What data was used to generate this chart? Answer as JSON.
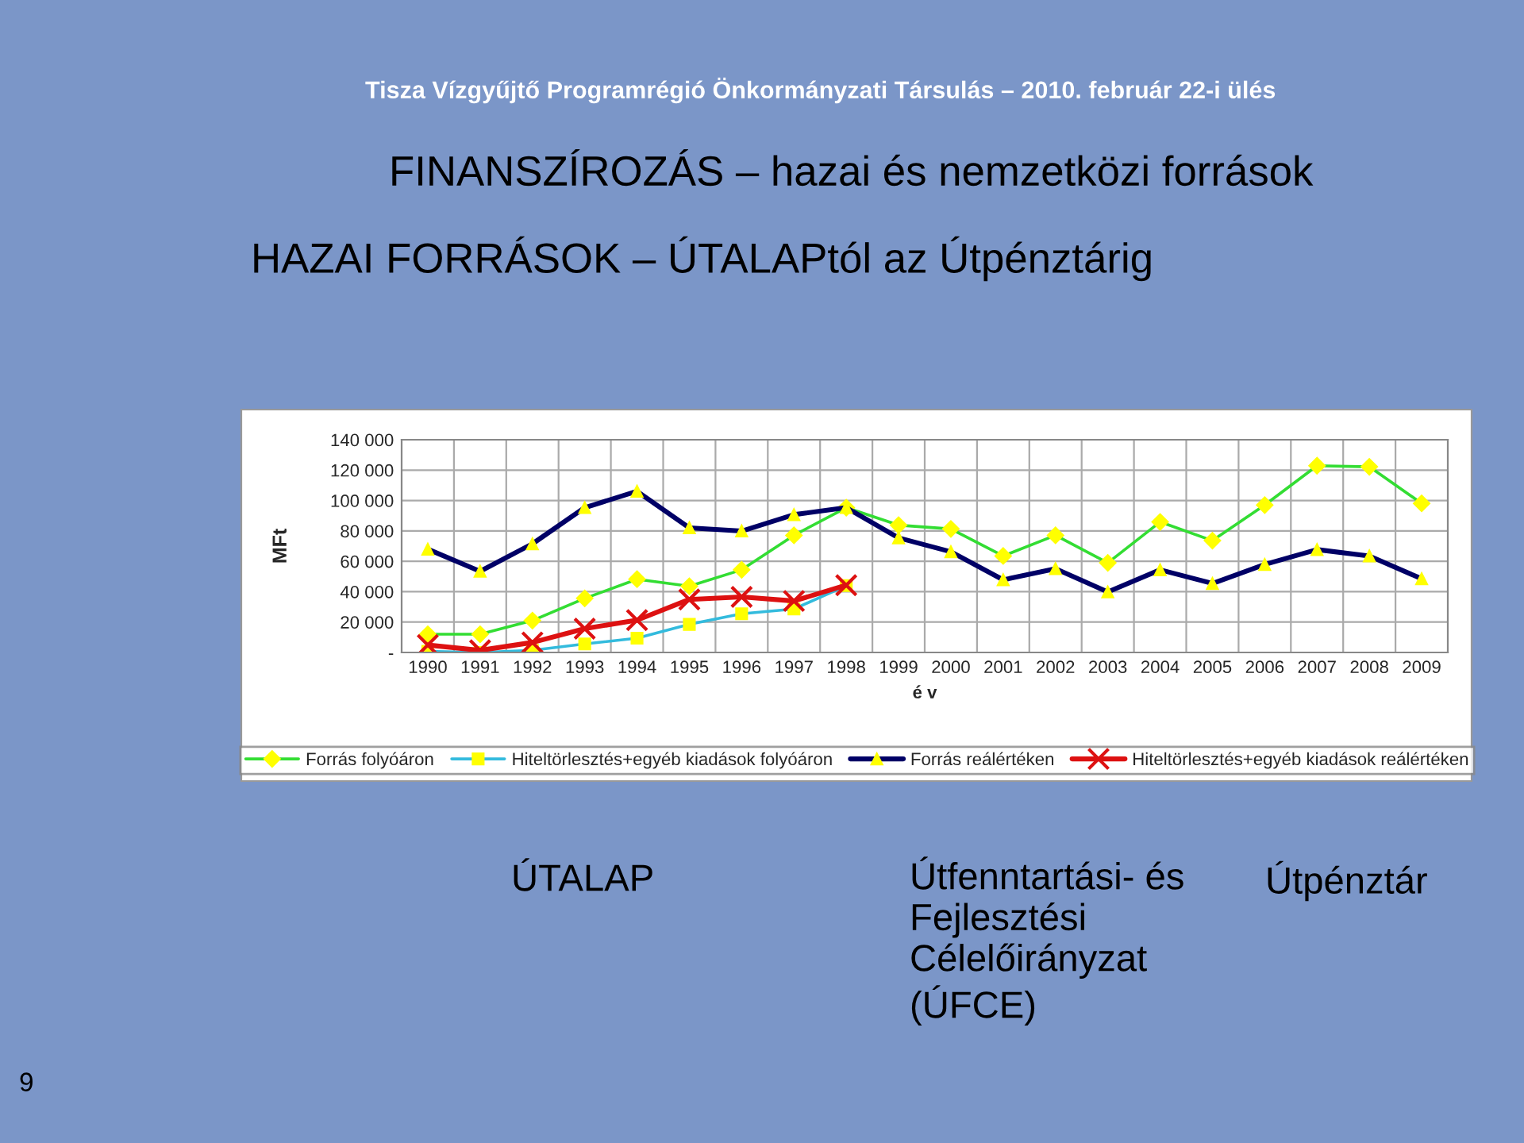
{
  "chart_data": {
    "type": "line",
    "title": "FINANSZÍROZÁS – hazai és nemzetközi források",
    "subtitle": "HAZAI FORRÁSOK – ÚTALAPtól az Útpénztárig",
    "xlabel": "é v",
    "ylabel": "MFt",
    "categories": [
      "1990",
      "1991",
      "1992",
      "1993",
      "1994",
      "1995",
      "1996",
      "1997",
      "1998",
      "1999",
      "2000",
      "2001",
      "2002",
      "2003",
      "2004",
      "2005",
      "2006",
      "2007",
      "2008",
      "2009"
    ],
    "series": [
      {
        "name": "Forrás folyóáron",
        "color": "#33dd33",
        "marker": "diamond",
        "values": [
          12000,
          12000,
          21000,
          35600,
          48200,
          43600,
          54400,
          77100,
          95300,
          83800,
          81300,
          63500,
          77100,
          59000,
          85900,
          73600,
          97000,
          122900,
          122200,
          98100
        ]
      },
      {
        "name": "Hiteltörlesztés+egyéb kiadások folyóáron",
        "color": "#33bbdd",
        "marker": "square",
        "values": [
          700,
          0,
          1400,
          5600,
          9400,
          18500,
          25500,
          28600,
          44000,
          null,
          null,
          null,
          null,
          null,
          null,
          null,
          null,
          null,
          null,
          null
        ]
      },
      {
        "name": "Forrás reálértéken",
        "color": "#000066",
        "marker": "triangle",
        "values": [
          68000,
          53400,
          71500,
          95300,
          106100,
          82000,
          79900,
          90700,
          95300,
          75400,
          66300,
          47800,
          55100,
          39800,
          54400,
          45400,
          57900,
          67700,
          63500,
          48500
        ]
      },
      {
        "name": "Hiteltörlesztés+egyéb kiadások reálértéken",
        "color": "#dd1111",
        "marker": "cross",
        "values": [
          4900,
          1400,
          6600,
          15700,
          21300,
          34900,
          36600,
          33900,
          44300,
          null,
          null,
          null,
          null,
          null,
          null,
          null,
          null,
          null,
          null,
          null
        ]
      }
    ],
    "ylim": [
      0,
      140000
    ],
    "yticks": [
      {
        "value": 0,
        "label": "-"
      },
      {
        "value": 20000,
        "label": "20 000"
      },
      {
        "value": 40000,
        "label": "40 000"
      },
      {
        "value": 60000,
        "label": "60 000"
      },
      {
        "value": 80000,
        "label": "80 000"
      },
      {
        "value": 100000,
        "label": "100 000"
      },
      {
        "value": 120000,
        "label": "120 000"
      },
      {
        "value": 140000,
        "label": "140 000"
      }
    ],
    "grid": true,
    "legend": "bottom",
    "line_style": "solid",
    "annotations": [
      "Tisza Vízgyűjtő Programrégió Önkormányzati Társulás – 2010. február 22-i ülés",
      "ÚTALAP",
      "Útfenntartási- és\nFejlesztési\nCélelőirányzat\n(ÚFCE)",
      "Útpénztár",
      "9"
    ]
  }
}
